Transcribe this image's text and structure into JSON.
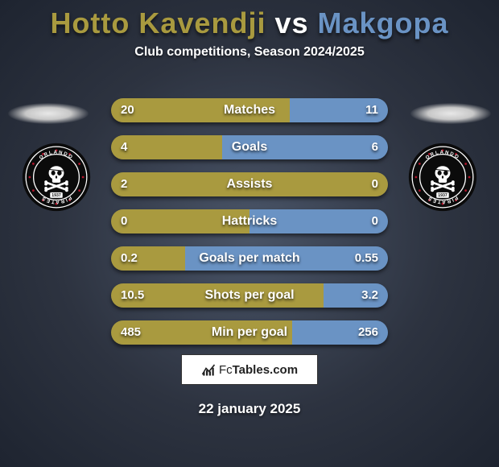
{
  "title": {
    "player1": "Hotto Kavendji",
    "vs": "vs",
    "player2": "Makgopa",
    "color1": "#a99a3f",
    "vs_color": "#ffffff",
    "color2": "#6a93c4"
  },
  "subtitle": "Club competitions, Season 2024/2025",
  "bar_colors": {
    "left": "#a99a3f",
    "right": "#6a93c4"
  },
  "stats": [
    {
      "label": "Matches",
      "left_val": "20",
      "right_val": "11",
      "left_pct": 64.5
    },
    {
      "label": "Goals",
      "left_val": "4",
      "right_val": "6",
      "left_pct": 40.0
    },
    {
      "label": "Assists",
      "left_val": "2",
      "right_val": "0",
      "left_pct": 100.0
    },
    {
      "label": "Hattricks",
      "left_val": "0",
      "right_val": "0",
      "left_pct": 50.0
    },
    {
      "label": "Goals per match",
      "left_val": "0.2",
      "right_val": "0.55",
      "left_pct": 26.7
    },
    {
      "label": "Shots per goal",
      "left_val": "10.5",
      "right_val": "3.2",
      "left_pct": 76.6
    },
    {
      "label": "Min per goal",
      "left_val": "485",
      "right_val": "256",
      "left_pct": 65.4
    }
  ],
  "attribution": {
    "prefix": "Fc",
    "suffix": "Tables.com"
  },
  "date": "22 january 2025",
  "badge": {
    "outer": "#0b0b0b",
    "ring": "#ffffff",
    "inner": "#0b0b0b",
    "accent_red": "#b3142a",
    "text_top": "ORLANDO",
    "text_bottom": "PIRATES",
    "year": "1937"
  }
}
